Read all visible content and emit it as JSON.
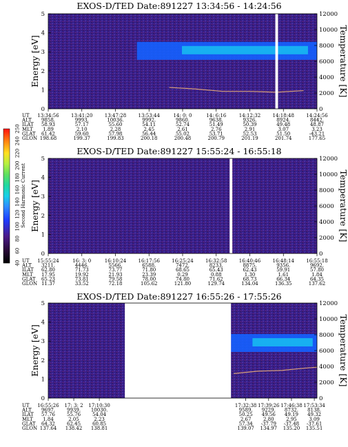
{
  "colors": {
    "background": "#3a1f86",
    "noise_dark": "#23106a",
    "noise_light": "#5b2fa8",
    "ion_band": "#1560ff",
    "ion_band_core": "#17c0f0",
    "temperature_trace": "#d8a07a",
    "gap": "#ffffff",
    "colorbar": [
      "#000000",
      "#2a0a3a",
      "#4b1a8a",
      "#1e3cff",
      "#2e8bff",
      "#18d0e8",
      "#20d9a0",
      "#5fe060",
      "#b6f040",
      "#ffe020",
      "#ff8010",
      "#ff1010"
    ]
  },
  "colorbar": {
    "label": "Second Harmonic Current",
    "ticks": [
      "40",
      "60",
      "80",
      "100",
      "120",
      "140",
      "160",
      "180",
      "200",
      "220",
      "240",
      "250"
    ]
  },
  "chart_data": [
    {
      "type": "heatmap",
      "title": "EXOS-D/TED   Date:891227   13:34:56 - 14:24:56",
      "ylabel": "Energy [eV]",
      "y2label": "Temperature [K]",
      "ylim": [
        0,
        5
      ],
      "y2lim": [
        0,
        12000
      ],
      "yticks": [
        "0",
        "1",
        "2",
        "3",
        "4",
        "5"
      ],
      "y2ticks": [
        "0",
        "2000",
        "4000",
        "6000",
        "8000",
        "10000",
        "12000"
      ],
      "data_gaps": [
        [
          0.845,
          0.855
        ]
      ],
      "ion_band": {
        "x_start": 0.33,
        "x_end": 1.0,
        "energy_center": 3.05
      },
      "temperature_trace": {
        "x": [
          0.45,
          0.55,
          0.65,
          0.75,
          0.85,
          0.95
        ],
        "y": [
          2700,
          2500,
          2200,
          2200,
          2100,
          2300
        ]
      },
      "table": {
        "row_labels": [
          "UT",
          "ALT",
          "ILAT",
          "MLT",
          "GLAT",
          "GLON"
        ],
        "columns": [
          [
            "13:34:56",
            "9858.",
            "58.93",
            "1.89",
            "61.42",
            "198.68"
          ],
          [
            "13:41:20",
            "9993.",
            "57.17",
            "2.10",
            "59.60",
            "199.37"
          ],
          [
            "13:47:28",
            "10036.",
            "55.60",
            "2.28",
            "57.98",
            "199.83"
          ],
          [
            "13:53:44",
            "9992.",
            "54.11",
            "2.45",
            "56.44",
            "200.18"
          ],
          [
            "14: 0: 0",
            "9860.",
            "52.74",
            "2.61",
            "55.02",
            "200.48"
          ],
          [
            "14: 6:16",
            "9638.",
            "51.49",
            "2.76",
            "53.71",
            "200.79"
          ],
          [
            "14:12:32",
            "9326.",
            "50.39",
            "2.91",
            "52.53",
            "201.19"
          ],
          [
            "14:18:48",
            "8924.",
            "49.48",
            "3.07",
            "51.50",
            "201.74"
          ],
          [
            "14:24:56",
            "8442.",
            "48.87",
            "3.23",
            "-43.21",
            "177.65"
          ]
        ]
      }
    },
    {
      "type": "heatmap",
      "title": "EXOS-D/TED   Date:891227   15:55:24 - 16:55:18",
      "ylabel": "Energy [eV]",
      "y2label": "Temperature [K]",
      "ylim": [
        0,
        5
      ],
      "y2lim": [
        0,
        12000
      ],
      "yticks": [
        "0",
        "1",
        "2",
        "3",
        "4",
        "5"
      ],
      "y2ticks": [
        "0",
        "2000",
        "4000",
        "6000",
        "8000",
        "10000",
        "12000"
      ],
      "data_gaps": [
        [
          0.675,
          0.685
        ]
      ],
      "table": {
        "row_labels": [
          "UT",
          "ALT",
          "ILAT",
          "MLT",
          "GLAT",
          "GLON"
        ],
        "columns": [
          [
            "15:55:24",
            "3211.",
            "62.80",
            "17.95",
            "65.23",
            "11.37"
          ],
          [
            "16: 3: 0",
            "4446.",
            "71.73",
            "19.92",
            "73.81",
            "33.52"
          ],
          [
            "16:10:24",
            "5566.",
            "73.77",
            "21.93",
            "79.58",
            "72.18"
          ],
          [
            "16:17:56",
            "6588.",
            "71.80",
            "23.39",
            "78.00",
            "105.62"
          ],
          [
            "16:25:24",
            "7472.",
            "68.65",
            "0.29",
            "74.80",
            "121.80"
          ],
          [
            "16:32:58",
            "8233.",
            "65.43",
            "0.88",
            "71.62",
            "129.74"
          ],
          [
            "16:40:46",
            "8875.",
            "62.43",
            "1.30",
            "68.73",
            "134.04"
          ],
          [
            "16:48:14",
            "9356.",
            "59.91",
            "1.61",
            "66.34",
            "136.35"
          ],
          [
            "16:55:18",
            "9692.",
            "57.80",
            "1.84",
            "64.35",
            "137.62"
          ]
        ]
      }
    },
    {
      "type": "heatmap",
      "title": "EXOS-D/TED   Date:891227   16:55:26 - 17:55:26",
      "ylabel": "Energy [eV]",
      "y2label": "Temperature [K]",
      "ylim": [
        0,
        5
      ],
      "y2lim": [
        0,
        12000
      ],
      "yticks": [
        "0",
        "1",
        "2",
        "3",
        "4",
        "5"
      ],
      "y2ticks": [
        "0",
        "2000",
        "4000",
        "6000",
        "8000",
        "10000",
        "12000"
      ],
      "data_gaps": [
        [
          0.285,
          0.68
        ]
      ],
      "ion_band": {
        "x_start": 0.68,
        "x_end": 1.0,
        "energy_center": 2.9
      },
      "temperature_trace": {
        "x": [
          0.69,
          0.78,
          0.87,
          0.96,
          1.0
        ],
        "y": [
          3100,
          3400,
          3500,
          3800,
          3900
        ]
      },
      "table": {
        "row_labels": [
          "UT",
          "ALT",
          "ILAT",
          "MLT",
          "GLAT",
          "GLON"
        ],
        "columns": [
          [
            "16:55:26",
            "9697.",
            "57.76",
            "1.84",
            "64.32",
            "137.64"
          ],
          [
            "17: 3: 2",
            "9939.",
            "55.76",
            "2.05",
            "62.45",
            "138.42"
          ],
          [
            "17:10:30",
            "10030.",
            "54.04",
            "2.23",
            "60.85",
            "138.81"
          ],
          [
            "17:32:38",
            "9589.",
            "50.25",
            "2.67",
            "57.34",
            "139.07"
          ],
          [
            "17:39:26",
            "9229.",
            "49.56",
            "2.80",
            "-37.79",
            "134.97"
          ],
          [
            "17:46:38",
            "8732.",
            "49.19",
            "2.95",
            "-37.48",
            "135.20"
          ],
          [
            "17:53:34",
            "8138.",
            "49.32",
            "3.09",
            "-37.61",
            "135.51"
          ]
        ]
      }
    }
  ]
}
